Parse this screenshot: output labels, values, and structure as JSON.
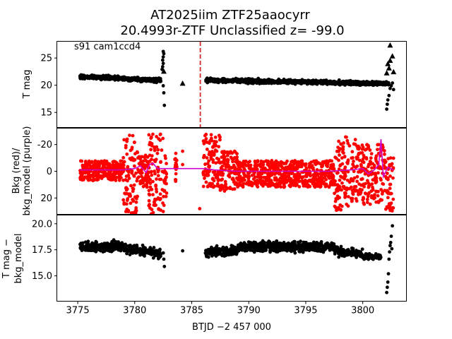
{
  "chart_data": {
    "type": "scatter",
    "title_line1": "AT2025iim  ZTF25aaocyrr",
    "title_line2": "20.4993r-ZTF Unclassified z= -99.0",
    "xlabel": "BTJD −2 457 000",
    "xlim": [
      3773.2,
      3803.8
    ],
    "xticks": [
      3775,
      3780,
      3785,
      3790,
      3795,
      3800
    ],
    "panels": [
      {
        "name": "tmag",
        "ylabel": "T mag",
        "annotation": "s91 cam1ccd4",
        "ylim": [
          28.0,
          12.3
        ],
        "yticks": [
          15,
          20,
          25
        ],
        "marker_color": "#000000",
        "vline": {
          "x": 3785.75,
          "color": "#d62728"
        },
        "segments": [
          {
            "x0": 3775.2,
            "x1": 3782.3,
            "y_start": 21.6,
            "y_end": 20.9,
            "scatter": 0.35
          },
          {
            "x0": 3786.2,
            "x1": 3802.3,
            "y_start": 20.9,
            "y_end": 20.3,
            "scatter": 0.35
          }
        ],
        "dip_points": [
          {
            "x": 3782.4,
            "y": 22.9
          },
          {
            "x": 3782.45,
            "y": 23.4
          },
          {
            "x": 3782.5,
            "y": 24.0
          },
          {
            "x": 3782.45,
            "y": 24.6
          },
          {
            "x": 3782.5,
            "y": 25.2
          },
          {
            "x": 3782.55,
            "y": 25.8
          },
          {
            "x": 3782.5,
            "y": 26.2
          },
          {
            "x": 3782.6,
            "y": 16.3
          },
          {
            "x": 3782.55,
            "y": 18.6
          },
          {
            "x": 3782.5,
            "y": 19.9
          }
        ],
        "triangles": [
          {
            "x": 3784.2,
            "y": 20.3
          },
          {
            "x": 3782.55,
            "y": 22.5
          },
          {
            "x": 3802.1,
            "y": 22.2
          },
          {
            "x": 3802.3,
            "y": 23.1
          },
          {
            "x": 3802.2,
            "y": 23.9
          },
          {
            "x": 3802.4,
            "y": 24.5
          },
          {
            "x": 3802.6,
            "y": 25.3
          },
          {
            "x": 3802.4,
            "y": 27.3
          },
          {
            "x": 3802.7,
            "y": 22.4
          }
        ],
        "late_points": [
          {
            "x": 3802.1,
            "y": 15.6
          },
          {
            "x": 3802.15,
            "y": 16.5
          },
          {
            "x": 3802.2,
            "y": 17.3
          },
          {
            "x": 3802.3,
            "y": 18.1
          },
          {
            "x": 3802.4,
            "y": 19.4
          },
          {
            "x": 3802.5,
            "y": 19.9
          },
          {
            "x": 3802.6,
            "y": 20.4
          },
          {
            "x": 3802.7,
            "y": 19.2
          }
        ]
      },
      {
        "name": "bkg",
        "ylabel_line1": "Bkg (red)/",
        "ylabel_line2": "bkg_model (purple)",
        "ylim": [
          -32,
          32
        ],
        "yticks": [
          -20,
          0,
          20
        ],
        "marker_color": "#ff0000",
        "model_color": "#cc00cc",
        "bands": [
          {
            "x0": 3775.2,
            "x1": 3779.0,
            "lo": -8,
            "hi": 7
          },
          {
            "x0": 3779.0,
            "x1": 3780.3,
            "lo": -28,
            "hi": 32
          },
          {
            "x0": 3780.3,
            "x1": 3781.2,
            "lo": -12,
            "hi": 12
          },
          {
            "x0": 3781.2,
            "x1": 3782.6,
            "lo": -28,
            "hi": 32
          },
          {
            "x0": 3782.6,
            "x1": 3782.8,
            "lo": -15,
            "hi": 20
          },
          {
            "x0": 3783.5,
            "x1": 3783.7,
            "lo": -18,
            "hi": 8
          },
          {
            "x0": 3786.0,
            "x1": 3787.5,
            "lo": -28,
            "hi": 12
          },
          {
            "x0": 3787.5,
            "x1": 3789.0,
            "lo": -15,
            "hi": 15
          },
          {
            "x0": 3789.0,
            "x1": 3797.5,
            "lo": -8,
            "hi": 12
          },
          {
            "x0": 3797.5,
            "x1": 3799.5,
            "lo": -28,
            "hi": 30
          },
          {
            "x0": 3799.5,
            "x1": 3802.0,
            "lo": -20,
            "hi": 25
          },
          {
            "x0": 3802.0,
            "x1": 3802.7,
            "lo": -10,
            "hi": 30
          }
        ],
        "isolated": [
          {
            "x": 3785.7,
            "y": 28
          },
          {
            "x": 3784.2,
            "y": -15
          },
          {
            "x": 3784.2,
            "y": -5
          }
        ],
        "model": [
          [
            3775.2,
            -1
          ],
          [
            3779.0,
            -1
          ],
          [
            3780.0,
            -2
          ],
          [
            3780.5,
            -4
          ],
          [
            3781.0,
            1
          ],
          [
            3781.3,
            -5
          ],
          [
            3781.6,
            -6
          ],
          [
            3782.0,
            -2
          ],
          [
            3782.6,
            -2
          ],
          [
            3785.5,
            -2
          ],
          [
            3786.0,
            -2
          ],
          [
            3787.0,
            -1
          ],
          [
            3789.0,
            0
          ],
          [
            3792.0,
            0
          ],
          [
            3797.0,
            0
          ],
          [
            3799.0,
            -1
          ],
          [
            3800.0,
            -2
          ],
          [
            3800.5,
            2
          ],
          [
            3801.0,
            -1
          ],
          [
            3801.4,
            -5
          ],
          [
            3801.6,
            -24
          ],
          [
            3801.8,
            4
          ],
          [
            3802.2,
            -3
          ],
          [
            3802.7,
            -1
          ]
        ]
      },
      {
        "name": "diff",
        "ylabel_line1": "T mag −",
        "ylabel_line2": "bkg_model",
        "ylim": [
          20.8,
          12.6
        ],
        "yticks": [
          15.0,
          17.5,
          20.0
        ],
        "marker_color": "#000000",
        "segments": [
          {
            "x0": 3775.2,
            "x1": 3779.3,
            "y_start": 17.8,
            "y_end": 17.8,
            "scatter": 0.45
          },
          {
            "x0": 3779.3,
            "x1": 3782.3,
            "y_start": 17.6,
            "y_end": 17.1,
            "scatter": 0.45
          },
          {
            "x0": 3786.2,
            "x1": 3789.0,
            "y_start": 17.2,
            "y_end": 17.4,
            "scatter": 0.4
          },
          {
            "x0": 3789.0,
            "x1": 3797.5,
            "y_start": 17.8,
            "y_end": 17.8,
            "scatter": 0.45
          },
          {
            "x0": 3797.5,
            "x1": 3800.0,
            "y_start": 17.4,
            "y_end": 17.1,
            "scatter": 0.4
          },
          {
            "x0": 3800.0,
            "x1": 3801.6,
            "y_start": 16.9,
            "y_end": 16.8,
            "scatter": 0.25
          }
        ],
        "extra_points": [
          {
            "x": 3782.6,
            "y": 15.9
          },
          {
            "x": 3782.55,
            "y": 16.6
          },
          {
            "x": 3782.5,
            "y": 17.2
          },
          {
            "x": 3784.2,
            "y": 17.4
          },
          {
            "x": 3802.1,
            "y": 13.4
          },
          {
            "x": 3802.15,
            "y": 13.9
          },
          {
            "x": 3802.2,
            "y": 14.4
          },
          {
            "x": 3802.25,
            "y": 15.2
          },
          {
            "x": 3802.3,
            "y": 16.6
          },
          {
            "x": 3802.35,
            "y": 17.3
          },
          {
            "x": 3802.4,
            "y": 17.9
          },
          {
            "x": 3802.45,
            "y": 18.2
          },
          {
            "x": 3802.5,
            "y": 18.8
          },
          {
            "x": 3802.55,
            "y": 17.6
          },
          {
            "x": 3802.6,
            "y": 19.8
          }
        ]
      }
    ]
  }
}
